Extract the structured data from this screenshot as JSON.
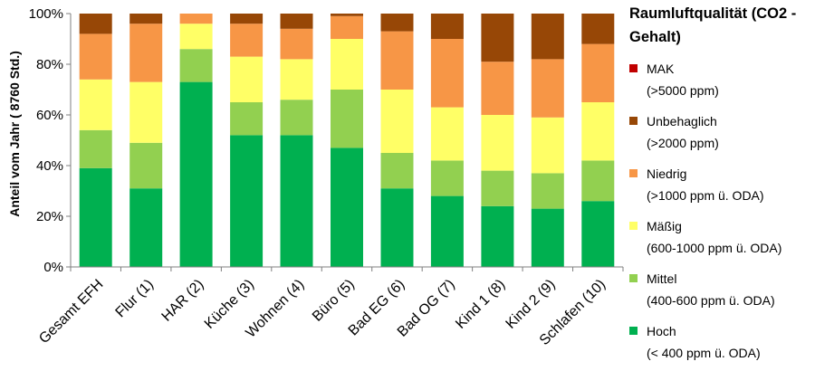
{
  "chart_data": {
    "type": "bar",
    "stacked": true,
    "ylabel": "Anteil vom Jahr ( 8760 Std.)",
    "ylim": [
      0,
      100
    ],
    "yticks": [
      "0%",
      "20%",
      "40%",
      "60%",
      "80%",
      "100%"
    ],
    "grid": false,
    "legend_placement": "right",
    "legend_title": "Raumluftqualität (CO2 - Gehalt)",
    "categories": [
      "Gesamt EFH",
      "Flur (1)",
      "HAR (2)",
      "Küche (3)",
      "Wohnen (4)",
      "Büro (5)",
      "Bad EG (6)",
      "Bad OG (7)",
      "Kind 1 (8)",
      "Kind 2 (9)",
      "Schlafen (10)"
    ],
    "series": [
      {
        "name": "Hoch",
        "detail": "(< 400 ppm ü. ODA)",
        "color": "#00b050",
        "values": [
          39,
          31,
          73,
          52,
          52,
          47,
          31,
          28,
          24,
          23,
          26
        ]
      },
      {
        "name": "Mittel",
        "detail": "(400-600 ppm ü. ODA)",
        "color": "#92d050",
        "values": [
          15,
          18,
          13,
          13,
          14,
          23,
          14,
          14,
          14,
          14,
          16
        ]
      },
      {
        "name": "Mäßig",
        "detail": "(600-1000 ppm ü. ODA)",
        "color": "#ffff66",
        "values": [
          20,
          24,
          10,
          18,
          16,
          20,
          25,
          21,
          22,
          22,
          23
        ]
      },
      {
        "name": "Niedrig",
        "detail": "(>1000 ppm ü. ODA)",
        "color": "#f79646",
        "values": [
          18,
          23,
          4,
          13,
          12,
          9,
          23,
          27,
          21,
          23,
          23
        ]
      },
      {
        "name": "Unbehaglich",
        "detail": "(>2000 ppm)",
        "color": "#974706",
        "values": [
          8,
          4,
          0,
          4,
          6,
          1,
          7,
          10,
          19,
          18,
          12
        ]
      },
      {
        "name": "MAK",
        "detail": "(>5000 ppm)",
        "color": "#c00000",
        "values": [
          0,
          0,
          0,
          0,
          0,
          0,
          0,
          0,
          0,
          0,
          0
        ]
      }
    ]
  }
}
